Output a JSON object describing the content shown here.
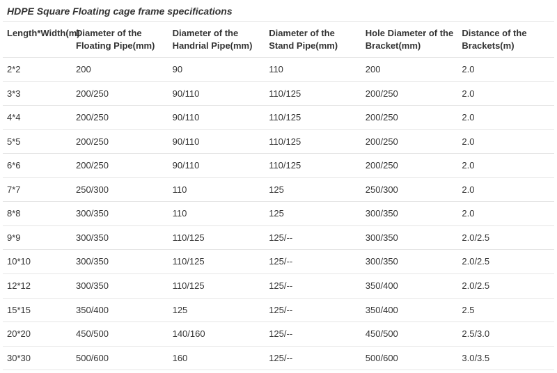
{
  "title": "HDPE Square Floating cage frame specifications",
  "table": {
    "columns": [
      "Length*Width(m)",
      "Diameter of the Floating Pipe(mm)",
      "Diameter of the Handrial Pipe(mm)",
      "Diameter of the Stand Pipe(mm)",
      "Hole Diameter of the Bracket(mm)",
      "Distance of the Brackets(m)"
    ],
    "rows": [
      [
        "2*2",
        "200",
        "90",
        "110",
        "200",
        "2.0"
      ],
      [
        "3*3",
        "200/250",
        "90/110",
        "110/125",
        "200/250",
        "2.0"
      ],
      [
        "4*4",
        "200/250",
        "90/110",
        "110/125",
        "200/250",
        "2.0"
      ],
      [
        "5*5",
        "200/250",
        "90/110",
        "110/125",
        "200/250",
        "2.0"
      ],
      [
        "6*6",
        "200/250",
        "90/110",
        "110/125",
        "200/250",
        "2.0"
      ],
      [
        "7*7",
        "250/300",
        "110",
        "125",
        "250/300",
        "2.0"
      ],
      [
        "8*8",
        "300/350",
        "110",
        "125",
        "300/350",
        "2.0"
      ],
      [
        "9*9",
        "300/350",
        "110/125",
        "125/--",
        "300/350",
        "2.0/2.5"
      ],
      [
        "10*10",
        "300/350",
        "110/125",
        "125/--",
        "300/350",
        "2.0/2.5"
      ],
      [
        "12*12",
        "300/350",
        "110/125",
        "125/--",
        "350/400",
        "2.0/2.5"
      ],
      [
        "15*15",
        "350/400",
        "125",
        "125/--",
        "350/400",
        "2.5"
      ],
      [
        "20*20",
        "450/500",
        "140/160",
        "125/--",
        "450/500",
        "2.5/3.0"
      ],
      [
        "30*30",
        "500/600",
        "160",
        "125/--",
        "500/600",
        "3.0/3.5"
      ]
    ],
    "col_widths_pct": [
      12.5,
      17.5,
      17.5,
      17.5,
      17.5,
      17.5
    ],
    "border_color": "#e5e5e5",
    "text_color": "#333333",
    "font_size_pt": 10,
    "header_font_weight": 600,
    "background_color": "#ffffff"
  }
}
